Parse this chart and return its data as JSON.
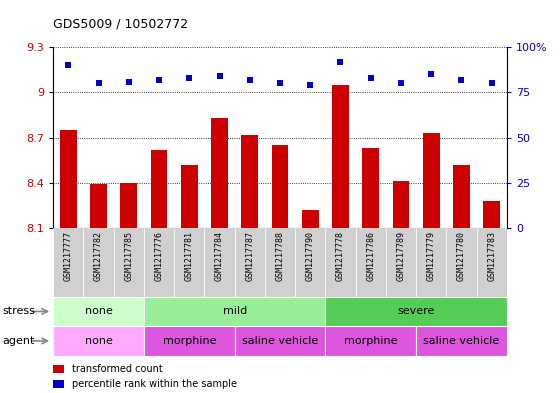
{
  "title": "GDS5009 / 10502772",
  "samples": [
    "GSM1217777",
    "GSM1217782",
    "GSM1217785",
    "GSM1217776",
    "GSM1217781",
    "GSM1217784",
    "GSM1217787",
    "GSM1217788",
    "GSM1217790",
    "GSM1217778",
    "GSM1217786",
    "GSM1217789",
    "GSM1217779",
    "GSM1217780",
    "GSM1217783"
  ],
  "transformed_count": [
    8.75,
    8.39,
    8.4,
    8.62,
    8.52,
    8.83,
    8.72,
    8.65,
    8.22,
    9.05,
    8.63,
    8.41,
    8.73,
    8.52,
    8.28
  ],
  "percentile_rank": [
    90,
    80,
    81,
    82,
    83,
    84,
    82,
    80,
    79,
    92,
    83,
    80,
    85,
    82,
    80
  ],
  "bar_color": "#cc0000",
  "dot_color": "#0000cc",
  "ylim_left": [
    8.1,
    9.3
  ],
  "ylim_right": [
    0,
    100
  ],
  "yticks_left": [
    8.1,
    8.4,
    8.7,
    9.0,
    9.3
  ],
  "ytick_labels_left": [
    "8.1",
    "8.4",
    "8.7",
    "9",
    "9.3"
  ],
  "yticks_right": [
    0,
    25,
    50,
    75,
    100
  ],
  "ytick_labels_right": [
    "0",
    "25",
    "50",
    "75",
    "100%"
  ],
  "stress_groups": [
    {
      "label": "none",
      "start": 0,
      "end": 3,
      "color": "#ccffcc"
    },
    {
      "label": "mild",
      "start": 3,
      "end": 9,
      "color": "#99ee99"
    },
    {
      "label": "severe",
      "start": 9,
      "end": 15,
      "color": "#55cc55"
    }
  ],
  "agent_groups": [
    {
      "label": "none",
      "start": 0,
      "end": 3,
      "color": "#ffaaff"
    },
    {
      "label": "morphine",
      "start": 3,
      "end": 6,
      "color": "#dd55dd"
    },
    {
      "label": "saline vehicle",
      "start": 6,
      "end": 9,
      "color": "#dd55dd"
    },
    {
      "label": "morphine",
      "start": 9,
      "end": 12,
      "color": "#dd55dd"
    },
    {
      "label": "saline vehicle",
      "start": 12,
      "end": 15,
      "color": "#dd55dd"
    }
  ],
  "tick_label_color_left": "#cc0000",
  "tick_label_color_right": "#0000cc",
  "plot_bg": "#ffffff",
  "xticklabel_bg": "#cccccc"
}
